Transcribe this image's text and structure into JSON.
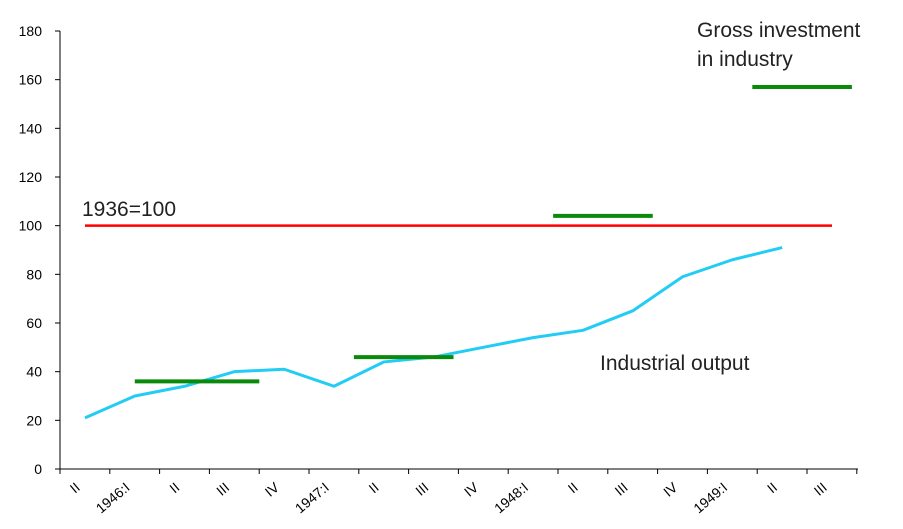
{
  "chart_data": {
    "type": "line",
    "categories": [
      "II",
      "1946:I",
      "II",
      "III",
      "IV",
      "1947:I",
      "II",
      "III",
      "IV",
      "1948:I",
      "II",
      "III",
      "IV",
      "1949:I",
      "II",
      "III"
    ],
    "ylim": [
      0,
      180
    ],
    "yticks": [
      0,
      20,
      40,
      60,
      80,
      100,
      120,
      140,
      160,
      180
    ],
    "grid": false,
    "series": [
      {
        "key": "industrial_output",
        "label": "Industrial output",
        "color": "#22ccf5",
        "style": "line",
        "values": [
          21,
          30,
          34,
          40,
          41,
          34,
          44,
          46,
          50,
          54,
          57,
          65,
          79,
          86,
          91,
          null
        ]
      },
      {
        "key": "reference",
        "label": "1936=100",
        "color": "#ff0000",
        "style": "hline",
        "value": 100,
        "x_range": [
          "II",
          "III"
        ],
        "x_end_index": 15
      },
      {
        "key": "gross_investment",
        "label_lines": [
          "Gross investment",
          "in industry"
        ],
        "color": "#0a8a0a",
        "style": "segments",
        "segments": [
          {
            "from": "1946:I",
            "to": "III",
            "from_index": 1.0,
            "to_index": 3.5,
            "value": 36
          },
          {
            "from": "1947:I",
            "to": "III",
            "from_index": 5.4,
            "to_index": 7.4,
            "value": 46
          },
          {
            "from": "1948:I",
            "to": "III",
            "from_index": 9.4,
            "to_index": 11.4,
            "value": 104
          },
          {
            "from": "1949:I",
            "to": "III",
            "from_index": 13.4,
            "to_index": 15.4,
            "value": 157
          }
        ]
      }
    ],
    "annotations": {
      "reference": "1936=100",
      "investment_line1": "Gross investment",
      "investment_line2": "in industry",
      "output": "Industrial output"
    }
  }
}
